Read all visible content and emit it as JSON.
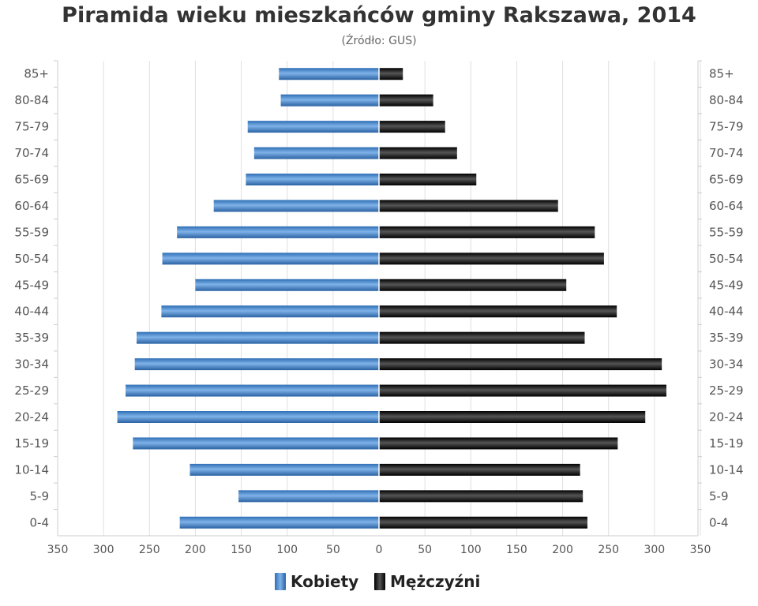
{
  "chart_data": {
    "type": "bar",
    "orientation": "horizontal-pyramid",
    "title": "Piramida wieku mieszkańców gminy Rakszawa, 2014",
    "subtitle": "(Źródło: GUS)",
    "categories": [
      "0-4",
      "5-9",
      "10-14",
      "15-19",
      "20-24",
      "25-29",
      "30-34",
      "35-39",
      "40-44",
      "45-49",
      "50-54",
      "55-59",
      "60-64",
      "65-69",
      "70-74",
      "75-79",
      "80-84",
      "85+"
    ],
    "series": [
      {
        "name": "Kobiety",
        "side": "left",
        "color": "#4a86c8",
        "values": [
          217,
          153,
          206,
          268,
          285,
          276,
          266,
          264,
          237,
          200,
          236,
          220,
          180,
          145,
          136,
          143,
          107,
          109
        ]
      },
      {
        "name": "Mężczyźni",
        "side": "right",
        "color": "#1a1a1a",
        "values": [
          227,
          222,
          219,
          260,
          290,
          313,
          308,
          224,
          259,
          204,
          245,
          235,
          195,
          106,
          85,
          72,
          59,
          26
        ]
      }
    ],
    "xticks": [
      350,
      300,
      250,
      200,
      150,
      100,
      50,
      0,
      50,
      100,
      150,
      200,
      250,
      300,
      350
    ],
    "xlim": [
      -350,
      350
    ],
    "grid": true,
    "legend_position": "bottom-center"
  }
}
